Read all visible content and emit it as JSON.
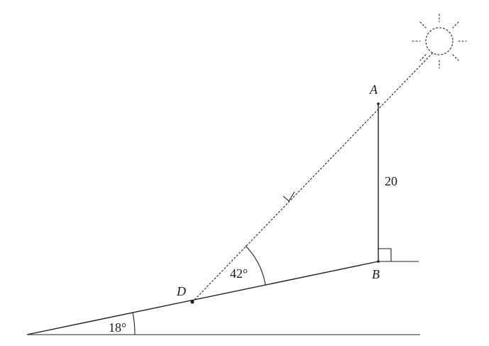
{
  "diagram": {
    "point_labels": {
      "A": "A",
      "B": "B",
      "D": "D"
    },
    "length_label": "20",
    "angle_labels": {
      "incline": "18°",
      "elevation": "42°"
    },
    "icons": {
      "sun": "sun-icon",
      "right_angle": "right-angle-marker",
      "arrow": "arrow-icon"
    },
    "colors": {
      "line": "#1f1f1f",
      "text": "#1a1a1a",
      "background": "#ffffff"
    }
  }
}
